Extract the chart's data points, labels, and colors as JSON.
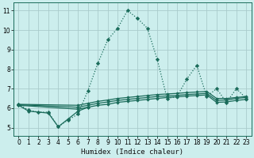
{
  "xlabel": "Humidex (Indice chaleur)",
  "bg_color": "#cceeed",
  "grid_color": "#aacccc",
  "line_color": "#1a6b5a",
  "xlim": [
    -0.5,
    23.5
  ],
  "ylim": [
    4.6,
    11.4
  ],
  "xticks": [
    0,
    1,
    2,
    3,
    4,
    5,
    6,
    7,
    8,
    9,
    10,
    11,
    12,
    13,
    14,
    15,
    16,
    17,
    18,
    19,
    20,
    21,
    22,
    23
  ],
  "yticks": [
    5,
    6,
    7,
    8,
    9,
    10,
    11
  ],
  "series": [
    {
      "x": [
        0,
        1,
        2,
        3,
        4,
        5,
        6,
        7,
        8,
        9,
        10,
        11,
        12,
        13,
        14,
        15,
        16,
        17,
        18,
        19,
        20,
        21,
        22,
        23
      ],
      "y": [
        6.2,
        5.9,
        5.8,
        5.8,
        5.05,
        5.4,
        5.7,
        6.9,
        8.3,
        9.5,
        10.1,
        11.0,
        10.6,
        10.1,
        8.5,
        6.5,
        6.6,
        7.5,
        8.2,
        6.6,
        7.0,
        6.3,
        7.0,
        6.5
      ],
      "style": "dotted"
    },
    {
      "x": [
        0,
        1,
        3,
        4,
        5,
        6,
        7
      ],
      "y": [
        6.15,
        5.85,
        5.75,
        5.05,
        5.45,
        5.85,
        6.05
      ],
      "style": "solid"
    },
    {
      "x": [
        0,
        6,
        7,
        8,
        9,
        10,
        11,
        12,
        13,
        14,
        15,
        16,
        17,
        18,
        19,
        20,
        21,
        22,
        23
      ],
      "y": [
        6.15,
        5.95,
        6.05,
        6.15,
        6.2,
        6.3,
        6.35,
        6.4,
        6.45,
        6.5,
        6.55,
        6.58,
        6.62,
        6.65,
        6.68,
        6.3,
        6.32,
        6.4,
        6.45
      ],
      "style": "solid"
    },
    {
      "x": [
        0,
        6,
        7,
        8,
        9,
        10,
        11,
        12,
        13,
        14,
        15,
        16,
        17,
        18,
        19,
        20,
        21,
        22,
        23
      ],
      "y": [
        6.18,
        6.05,
        6.15,
        6.25,
        6.32,
        6.4,
        6.45,
        6.5,
        6.55,
        6.6,
        6.63,
        6.66,
        6.7,
        6.73,
        6.76,
        6.4,
        6.42,
        6.5,
        6.55
      ],
      "style": "solid"
    },
    {
      "x": [
        0,
        6,
        7,
        8,
        9,
        10,
        11,
        12,
        13,
        14,
        15,
        16,
        17,
        18,
        19,
        20,
        21,
        22,
        23
      ],
      "y": [
        6.2,
        6.15,
        6.25,
        6.35,
        6.42,
        6.5,
        6.55,
        6.6,
        6.65,
        6.7,
        6.73,
        6.76,
        6.8,
        6.83,
        6.86,
        6.5,
        6.5,
        6.55,
        6.6
      ],
      "style": "solid"
    }
  ]
}
